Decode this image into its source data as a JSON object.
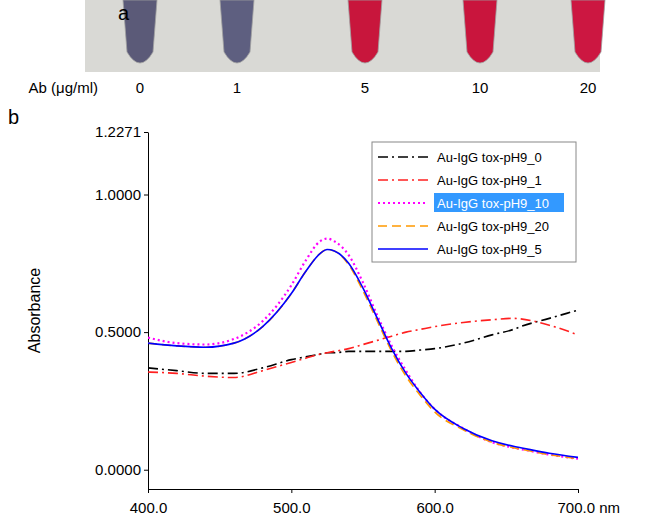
{
  "photo": {
    "panel_label": "a",
    "axis_label": "Ab (μg/ml)",
    "concentrations": [
      0,
      1,
      5,
      10,
      20
    ],
    "colors": [
      "#5b5a78",
      "#5e5f80",
      "#c8163c",
      "#c9153d",
      "#cc1741"
    ]
  },
  "chart_data": {
    "type": "line",
    "panel_label": "b",
    "y_label": "Absorbance",
    "x": [
      400,
      420,
      440,
      460,
      480,
      500,
      510,
      520,
      525,
      530,
      540,
      550,
      560,
      570,
      580,
      590,
      600,
      620,
      640,
      655,
      660,
      680,
      700
    ],
    "xlim": [
      400,
      700
    ],
    "xticks": [
      {
        "value": 400,
        "label": "400.0"
      },
      {
        "value": 500,
        "label": "500.0"
      },
      {
        "value": 600,
        "label": "600.0"
      },
      {
        "value": 700,
        "label": "700.0 nm"
      }
    ],
    "ylim": [
      -0.07,
      1.2271
    ],
    "yticks": [
      {
        "value": 0,
        "label": "0.0000"
      },
      {
        "value": 0.5,
        "label": "0.5000"
      },
      {
        "value": 1,
        "label": "1.0000"
      },
      1.2271
    ],
    "legend": "top-right",
    "series": [
      {
        "name": "Au-IgG tox-pH9_0",
        "color": "#000000",
        "line_style": "dashdot",
        "values": [
          0.37,
          0.36,
          0.35,
          0.35,
          0.37,
          0.4,
          0.41,
          0.42,
          0.425,
          0.425,
          0.43,
          0.43,
          0.43,
          0.43,
          0.43,
          0.435,
          0.44,
          0.46,
          0.49,
          0.51,
          0.52,
          0.55,
          0.58
        ]
      },
      {
        "name": "Au-IgG tox-pH9_1",
        "color": "#ff2020",
        "line_style": "dashdot",
        "values": [
          0.355,
          0.35,
          0.34,
          0.335,
          0.36,
          0.39,
          0.405,
          0.42,
          0.425,
          0.43,
          0.44,
          0.455,
          0.47,
          0.485,
          0.5,
          0.51,
          0.52,
          0.535,
          0.545,
          0.55,
          0.548,
          0.525,
          0.49
        ]
      },
      {
        "name": "Au-IgG tox-pH9_10",
        "color": "#ff00ff",
        "line_style": "dotted",
        "values": [
          0.48,
          0.46,
          0.455,
          0.475,
          0.54,
          0.67,
          0.76,
          0.83,
          0.84,
          0.83,
          0.78,
          0.68,
          0.56,
          0.45,
          0.36,
          0.28,
          0.22,
          0.15,
          0.1,
          0.08,
          0.075,
          0.055,
          0.04
        ]
      },
      {
        "name": "Au-IgG tox-pH9_20",
        "color": "#ff9900",
        "line_style": "dashed",
        "values": [
          0.46,
          0.45,
          0.445,
          0.46,
          0.52,
          0.64,
          0.72,
          0.785,
          0.8,
          0.795,
          0.745,
          0.65,
          0.54,
          0.43,
          0.34,
          0.27,
          0.21,
          0.145,
          0.1,
          0.08,
          0.075,
          0.055,
          0.04
        ]
      },
      {
        "name": "Au-IgG tox-pH9_5",
        "color": "#0000ff",
        "line_style": "solid",
        "values": [
          0.46,
          0.45,
          0.445,
          0.46,
          0.52,
          0.64,
          0.72,
          0.785,
          0.8,
          0.795,
          0.75,
          0.66,
          0.55,
          0.44,
          0.35,
          0.28,
          0.22,
          0.15,
          0.105,
          0.085,
          0.08,
          0.06,
          0.045
        ]
      }
    ]
  }
}
